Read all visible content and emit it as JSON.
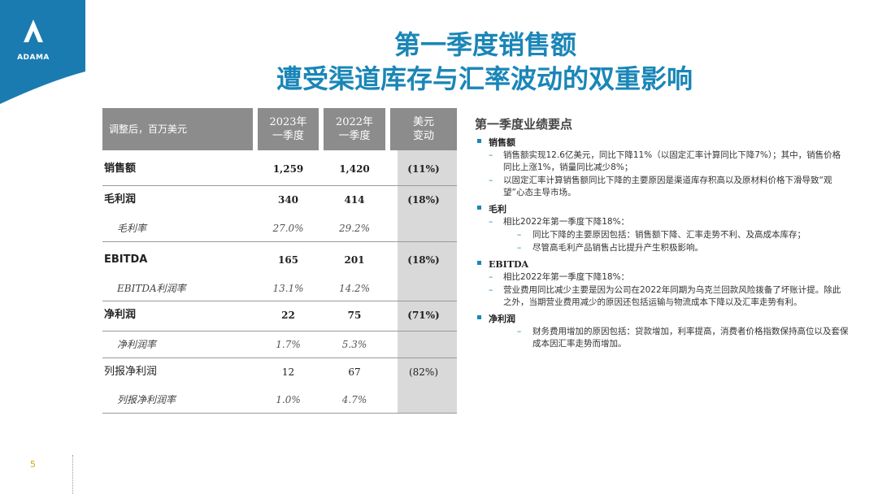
{
  "logo": {
    "text": "ADAMA",
    "color": "#1a7bb0"
  },
  "title": {
    "line1": "第一季度销售额",
    "line2": "遭受渠道库存与汇率波动的双重影响",
    "color": "#1a86b7"
  },
  "table": {
    "header": {
      "label": "调整后，百万美元",
      "col1": [
        "2023年",
        "一季度"
      ],
      "col2": [
        "2022年",
        "一季度"
      ],
      "col3": [
        "美元",
        "变动"
      ]
    },
    "rows": [
      {
        "label": "销售额",
        "v1": "1,259",
        "v2": "1,420",
        "v3": "(11%)",
        "style": "bold"
      },
      {
        "label": "毛利润",
        "v1": "340",
        "v2": "414",
        "v3": "(18%)",
        "style": "bold"
      },
      {
        "label": "毛利率",
        "v1": "27.0%",
        "v2": "29.2%",
        "v3": "",
        "style": "ital"
      },
      {
        "label": "EBITDA",
        "v1": "165",
        "v2": "201",
        "v3": "(18%)",
        "style": "bold"
      },
      {
        "label": "EBITDA利润率",
        "v1": "13.1%",
        "v2": "14.2%",
        "v3": "",
        "style": "ital"
      },
      {
        "label": "净利润",
        "v1": "22",
        "v2": "75",
        "v3": "(71%)",
        "style": "bold"
      },
      {
        "label": "净利润率",
        "v1": "1.7%",
        "v2": "5.3%",
        "v3": "",
        "style": "ital"
      },
      {
        "label": "列报净利润",
        "v1": "12",
        "v2": "67",
        "v3": "(82%)",
        "style": "plain"
      },
      {
        "label": "列报净利润率",
        "v1": "1.0%",
        "v2": "4.7%",
        "v3": "",
        "style": "ital"
      }
    ]
  },
  "panel": {
    "heading": "第一季度业绩要点",
    "sections": [
      {
        "head": "销售额",
        "items": [
          {
            "level": 1,
            "text": "销售额实现12.6亿美元，同比下降11%（以固定汇率计算同比下降7%）；其中，销售价格同比上涨1%，销量同比减少8%；"
          },
          {
            "level": 1,
            "text": "以固定汇率计算销售额同比下降的主要原因是渠道库存积高以及原材料价格下滑导致“观望”心态主导市场。"
          }
        ]
      },
      {
        "head": "毛利",
        "items": [
          {
            "level": 1,
            "text": "相比2022年第一季度下降18%："
          },
          {
            "level": 2,
            "text": "同比下降的主要原因包括：销售额下降、汇率走势不利、及高成本库存；"
          },
          {
            "level": 2,
            "text": "尽管高毛利产品销售占比提升产生积极影响。"
          }
        ]
      },
      {
        "head": "EBITDA",
        "items": [
          {
            "level": 1,
            "text": "相比2022年第一季度下降18%："
          },
          {
            "level": 1,
            "text": "营业费用同比减少主要是因为公司在2022年同期为乌克兰回款风险拨备了坏账计提。除此之外，当期营业费用减少的原因还包括运输与物流成本下降以及汇率走势有利。"
          }
        ]
      },
      {
        "head": "净利润",
        "items": [
          {
            "level": 2,
            "text": "财务费用增加的原因包括：贷款增加，利率提高，消费者价格指数保持高位以及套保成本因汇率走势而增加。"
          }
        ]
      }
    ]
  },
  "page_number": "5"
}
